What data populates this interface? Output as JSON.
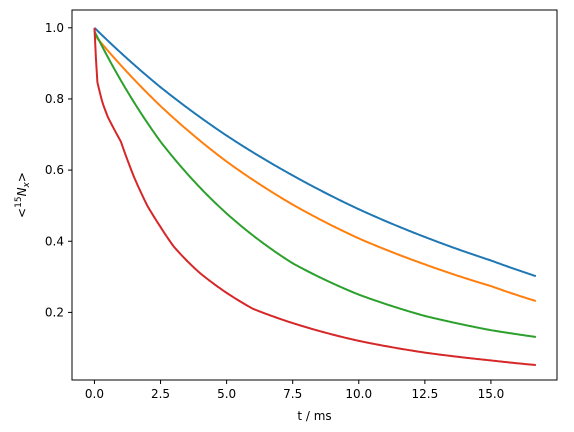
{
  "chart_data": {
    "type": "line",
    "title": "",
    "xlabel": "t / ms",
    "ylabel": "<15Nx>",
    "ylabel_parts": {
      "prefix": "<",
      "sup": "15",
      "main": "N",
      "sub": "x",
      "suffix": ">"
    },
    "xlim": [
      -0.85,
      17.5
    ],
    "ylim": [
      0.01,
      1.05
    ],
    "xticks": [
      0.0,
      2.5,
      5.0,
      7.5,
      10.0,
      12.5,
      15.0
    ],
    "xtick_labels": [
      "0.0",
      "2.5",
      "5.0",
      "7.5",
      "10.0",
      "12.5",
      "15.0"
    ],
    "yticks": [
      0.2,
      0.4,
      0.6,
      0.8,
      1.0
    ],
    "ytick_labels": [
      "0.2",
      "0.4",
      "0.6",
      "0.8",
      "1.0"
    ],
    "grid": false,
    "legend": "none",
    "series": [
      {
        "color": "#1f77b4",
        "x": [
          0,
          2.5,
          5,
          7.5,
          10,
          12.5,
          15,
          16.7
        ],
        "y": [
          1.0,
          0.833,
          0.697,
          0.585,
          0.49,
          0.412,
          0.346,
          0.302
        ]
      },
      {
        "color": "#ff7f0e",
        "x": [
          0,
          2.5,
          5,
          7.5,
          10,
          12.5,
          15,
          16.7
        ],
        "y": [
          0.98,
          0.78,
          0.624,
          0.503,
          0.408,
          0.335,
          0.274,
          0.232
        ]
      },
      {
        "color": "#2ca02c",
        "x": [
          0,
          2.5,
          5,
          7.5,
          10,
          12.5,
          15,
          16.7
        ],
        "y": [
          0.99,
          0.68,
          0.478,
          0.338,
          0.25,
          0.19,
          0.15,
          0.131
        ]
      },
      {
        "color": "#d62728",
        "x": [
          0,
          0.1,
          0.3,
          0.5,
          1.0,
          1.5,
          2.0,
          2.5,
          3.0,
          3.5,
          4.0,
          5.0,
          6.0,
          7.5,
          10.0,
          12.5,
          15.0,
          16.7
        ],
        "y": [
          1.0,
          0.85,
          0.79,
          0.75,
          0.68,
          0.58,
          0.5,
          0.44,
          0.385,
          0.345,
          0.31,
          0.255,
          0.21,
          0.17,
          0.12,
          0.087,
          0.065,
          0.052
        ]
      }
    ]
  }
}
